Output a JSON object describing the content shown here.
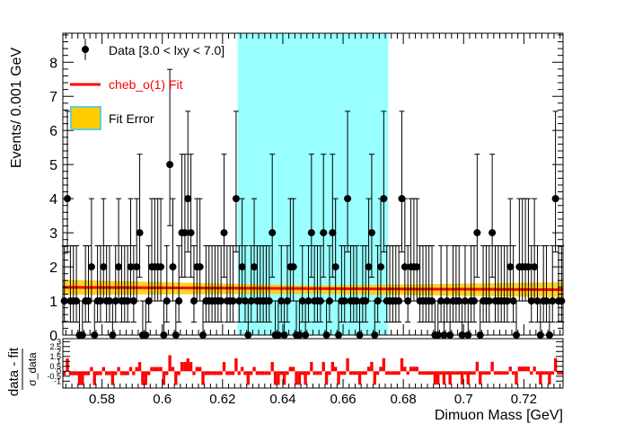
{
  "chart_data": [
    {
      "type": "scatter",
      "title": "",
      "xlabel": "",
      "ylabel": "Events/ 0.001 GeV",
      "xlim": [
        0.567,
        0.733
      ],
      "ylim": [
        0,
        8.85
      ],
      "yticks": [
        0,
        1,
        2,
        3,
        4,
        5,
        6,
        7,
        8
      ],
      "grid": false,
      "legend_position": "top-left",
      "legend": [
        {
          "label": "Data [3.0 < lxy < 7.0]",
          "marker": "point",
          "color": "#000000"
        },
        {
          "label": "cheb_o(1) Fit",
          "marker": "line",
          "color": "#ff0000"
        },
        {
          "label": "Fit Error",
          "marker": "box",
          "color": "#ffcc00",
          "edge": "#66cccc"
        }
      ],
      "signal_region": {
        "x": [
          0.625,
          0.675
        ],
        "color": "#99ffff"
      },
      "fit": {
        "name": "cheb_o(1) Fit",
        "x": [
          0.567,
          0.733
        ],
        "y": [
          1.4,
          1.33
        ],
        "color": "#ff0000"
      },
      "fit_error": {
        "name": "Fit Error",
        "x": [
          0.567,
          0.65,
          0.733
        ],
        "upper": [
          1.62,
          1.45,
          1.55
        ],
        "lower": [
          1.18,
          1.21,
          1.11
        ],
        "color": "#ffcc00"
      },
      "series": [
        {
          "name": "Data [3.0 < lxy < 7.0]",
          "x0": 0.5675,
          "dx": 0.001,
          "y": [
            1,
            4,
            1,
            1,
            1,
            0,
            0,
            1,
            1,
            2,
            0,
            1,
            1,
            2,
            1,
            1,
            0,
            1,
            2,
            1,
            1,
            1,
            2,
            1,
            2,
            3,
            0,
            0,
            1,
            2,
            2,
            2,
            2,
            0,
            1,
            5,
            2,
            0,
            1,
            3,
            3,
            4,
            3,
            1,
            2,
            2,
            0,
            1,
            1,
            1,
            1,
            1,
            1,
            3,
            1,
            1,
            1,
            4,
            1,
            2,
            1,
            0,
            1,
            2,
            1,
            1,
            1,
            1,
            1,
            3,
            0,
            0,
            1,
            0,
            1,
            2,
            2,
            0,
            0,
            1,
            0,
            1,
            3,
            1,
            1,
            1,
            3,
            0,
            1,
            3,
            2,
            0,
            1,
            1,
            4,
            1,
            1,
            1,
            0,
            1,
            1,
            2,
            3,
            0,
            1,
            2,
            4,
            1,
            1,
            1,
            1,
            1,
            4,
            2,
            1,
            2,
            2,
            2,
            1,
            1,
            1,
            1,
            1,
            0,
            0,
            1,
            0,
            1,
            0,
            1,
            1,
            1,
            0,
            1,
            0,
            1,
            1,
            3,
            0,
            1,
            1,
            1,
            3,
            1,
            1,
            1,
            1,
            1,
            2,
            1,
            0,
            2,
            2,
            2,
            2,
            1,
            2,
            1,
            0,
            1,
            1,
            0,
            1,
            4,
            1,
            1,
            1,
            1,
            3,
            0,
            1,
            2,
            1,
            1,
            4,
            1,
            1,
            1,
            1,
            1,
            1
          ],
          "marker_color": "#000000"
        }
      ]
    },
    {
      "type": "bar",
      "title": "",
      "xlabel": "Dimuon Mass [GeV]",
      "ylabel": "data - fit",
      "ylabel_sub": "σ_data",
      "xlim": [
        0.567,
        0.733
      ],
      "ylim": [
        -1.7,
        3.3
      ],
      "yticks": [
        "3",
        "2.5",
        "2",
        "1.5",
        "1",
        "0.5",
        "0",
        "-0.5",
        "-1"
      ],
      "xticks": [
        "0.58",
        "0.6",
        "0.62",
        "0.64",
        "0.66",
        "0.68",
        "0.7",
        "0.72"
      ],
      "xtick_values": [
        0.58,
        0.6,
        0.62,
        0.64,
        0.66,
        0.68,
        0.7,
        0.72
      ],
      "series": [
        {
          "name": "",
          "x0": 0.5675,
          "dx": 0.001,
          "values_from": "pulls",
          "color": "#ff0000"
        }
      ]
    }
  ]
}
